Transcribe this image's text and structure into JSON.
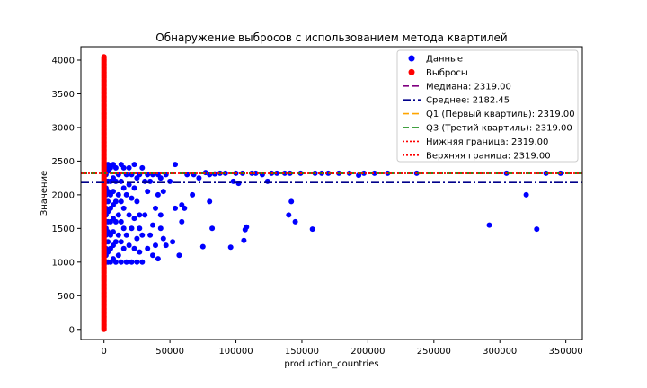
{
  "chart_data": {
    "type": "scatter",
    "title": "Обнаружение выбросов с использованием метода квартилей",
    "xlabel": "production_countries",
    "ylabel": "Значение",
    "xlim": [
      -17500,
      362500
    ],
    "ylim": [
      -150,
      4200
    ],
    "x_ticks": [
      0,
      50000,
      100000,
      150000,
      200000,
      250000,
      300000,
      350000
    ],
    "y_ticks": [
      0,
      500,
      1000,
      1500,
      2000,
      2500,
      3000,
      3500,
      4000
    ],
    "grid": false,
    "legend_position": "top-right",
    "series": [
      {
        "name": "Данные",
        "color": "#0000ff",
        "marker": "circle",
        "points": [
          [
            1500,
            1000
          ],
          [
            1500,
            1100
          ],
          [
            1500,
            1200
          ],
          [
            1500,
            1300
          ],
          [
            1500,
            1400
          ],
          [
            1500,
            1500
          ],
          [
            1500,
            1600
          ],
          [
            1500,
            1700
          ],
          [
            1500,
            1800
          ],
          [
            1500,
            1900
          ],
          [
            1500,
            2000
          ],
          [
            1500,
            2100
          ],
          [
            1500,
            2200
          ],
          [
            1500,
            2300
          ],
          [
            1500,
            2400
          ],
          [
            3000,
            1000
          ],
          [
            3000,
            1150
          ],
          [
            3000,
            1300
          ],
          [
            3000,
            1450
          ],
          [
            3000,
            1600
          ],
          [
            3000,
            1750
          ],
          [
            3000,
            1900
          ],
          [
            3000,
            2050
          ],
          [
            3000,
            2200
          ],
          [
            3000,
            2350
          ],
          [
            3000,
            2450
          ],
          [
            5000,
            1000
          ],
          [
            5000,
            1200
          ],
          [
            5000,
            1400
          ],
          [
            5000,
            1600
          ],
          [
            5000,
            1800
          ],
          [
            5000,
            2000
          ],
          [
            5000,
            2200
          ],
          [
            5000,
            2400
          ],
          [
            7000,
            1050
          ],
          [
            7000,
            1250
          ],
          [
            7000,
            1450
          ],
          [
            7000,
            1650
          ],
          [
            7000,
            1850
          ],
          [
            7000,
            2050
          ],
          [
            7000,
            2250
          ],
          [
            7000,
            2450
          ],
          [
            9000,
            1000
          ],
          [
            9000,
            1300
          ],
          [
            9000,
            1600
          ],
          [
            9000,
            1900
          ],
          [
            9000,
            2200
          ],
          [
            9000,
            2400
          ],
          [
            11000,
            1100
          ],
          [
            11000,
            1400
          ],
          [
            11000,
            1700
          ],
          [
            11000,
            2000
          ],
          [
            11000,
            2300
          ],
          [
            13000,
            1000
          ],
          [
            13000,
            1300
          ],
          [
            13000,
            1600
          ],
          [
            13000,
            1900
          ],
          [
            13000,
            2200
          ],
          [
            13000,
            2450
          ],
          [
            15000,
            1200
          ],
          [
            15000,
            1500
          ],
          [
            15000,
            1800
          ],
          [
            15000,
            2100
          ],
          [
            15000,
            2400
          ],
          [
            17000,
            1000
          ],
          [
            17000,
            1400
          ],
          [
            17000,
            2000
          ],
          [
            17000,
            2300
          ],
          [
            19000,
            1250
          ],
          [
            19000,
            1700
          ],
          [
            19000,
            2150
          ],
          [
            19000,
            2400
          ],
          [
            21000,
            1000
          ],
          [
            21000,
            1500
          ],
          [
            21000,
            1950
          ],
          [
            21000,
            2300
          ],
          [
            23000,
            1200
          ],
          [
            23000,
            1650
          ],
          [
            23000,
            2100
          ],
          [
            23000,
            2450
          ],
          [
            25000,
            1000
          ],
          [
            25000,
            1350
          ],
          [
            25000,
            1900
          ],
          [
            25000,
            2250
          ],
          [
            27000,
            1150
          ],
          [
            27000,
            1500
          ],
          [
            27000,
            1700
          ],
          [
            27000,
            2300
          ],
          [
            29000,
            1000
          ],
          [
            29000,
            1400
          ],
          [
            29000,
            2400
          ],
          [
            31000,
            1700
          ],
          [
            31000,
            2200
          ],
          [
            33000,
            1200
          ],
          [
            33000,
            2050
          ],
          [
            33000,
            2300
          ],
          [
            35000,
            1400
          ],
          [
            35000,
            2200
          ],
          [
            37000,
            1100
          ],
          [
            37000,
            1550
          ],
          [
            37000,
            2300
          ],
          [
            39000,
            1800
          ],
          [
            39000,
            1250
          ],
          [
            41000,
            1050
          ],
          [
            41000,
            2000
          ],
          [
            41000,
            2300
          ],
          [
            43000,
            1500
          ],
          [
            43000,
            1700
          ],
          [
            43000,
            2250
          ],
          [
            45000,
            2050
          ],
          [
            45000,
            1350
          ],
          [
            47000,
            1250
          ],
          [
            47000,
            2300
          ],
          [
            50000,
            2200
          ],
          [
            52000,
            1300
          ],
          [
            54000,
            1800
          ],
          [
            54000,
            2450
          ],
          [
            57000,
            1100
          ],
          [
            59000,
            1850
          ],
          [
            59000,
            1600
          ],
          [
            61000,
            1800
          ],
          [
            63000,
            2300
          ],
          [
            67000,
            2000
          ],
          [
            68000,
            2300
          ],
          [
            72000,
            2250
          ],
          [
            75000,
            1230
          ],
          [
            77000,
            2330
          ],
          [
            80000,
            1900
          ],
          [
            80000,
            2300
          ],
          [
            82000,
            1500
          ],
          [
            84000,
            2310
          ],
          [
            88000,
            2320
          ],
          [
            92000,
            2320
          ],
          [
            96000,
            1220
          ],
          [
            98000,
            2200
          ],
          [
            100000,
            2320
          ],
          [
            102000,
            2170
          ],
          [
            105000,
            2320
          ],
          [
            106000,
            1320
          ],
          [
            107000,
            1480
          ],
          [
            108000,
            1520
          ],
          [
            112000,
            2320
          ],
          [
            115000,
            2320
          ],
          [
            120000,
            2300
          ],
          [
            124000,
            2200
          ],
          [
            127000,
            2320
          ],
          [
            131000,
            2320
          ],
          [
            137000,
            2320
          ],
          [
            140000,
            1700
          ],
          [
            141000,
            2320
          ],
          [
            142000,
            1900
          ],
          [
            145000,
            1600
          ],
          [
            149000,
            2320
          ],
          [
            158000,
            1490
          ],
          [
            160000,
            2320
          ],
          [
            165000,
            2320
          ],
          [
            170000,
            2320
          ],
          [
            178000,
            2320
          ],
          [
            186000,
            2320
          ],
          [
            193000,
            2290
          ],
          [
            197000,
            2320
          ],
          [
            205000,
            2320
          ],
          [
            215000,
            2320
          ],
          [
            237000,
            2320
          ],
          [
            292000,
            1550
          ],
          [
            305000,
            2320
          ],
          [
            320000,
            2000
          ],
          [
            328000,
            1490
          ],
          [
            335000,
            2320
          ],
          [
            346000,
            2320
          ]
        ]
      },
      {
        "name": "Выбросы",
        "color": "#ff0000",
        "marker": "circle",
        "x": 0,
        "y_range": [
          0,
          4050
        ]
      }
    ],
    "reference_lines": [
      {
        "label": "Медиана: 2319.00",
        "y": 2319,
        "color": "#800080",
        "style": "dashed"
      },
      {
        "label": "Среднее: 2182.45",
        "y": 2182.45,
        "color": "#00008b",
        "style": "dashdot"
      },
      {
        "label": "Q1 (Первый квартиль): 2319.00",
        "y": 2319,
        "color": "#ffa500",
        "style": "dashed"
      },
      {
        "label": "Q3 (Третий квартиль): 2319.00",
        "y": 2319,
        "color": "#008000",
        "style": "dashed"
      },
      {
        "label": "Нижняя граница: 2319.00",
        "y": 2319,
        "color": "#ff0000",
        "style": "dotted"
      },
      {
        "label": "Верхняя граница: 2319.00",
        "y": 2319,
        "color": "#ff0000",
        "style": "dotted"
      }
    ]
  }
}
